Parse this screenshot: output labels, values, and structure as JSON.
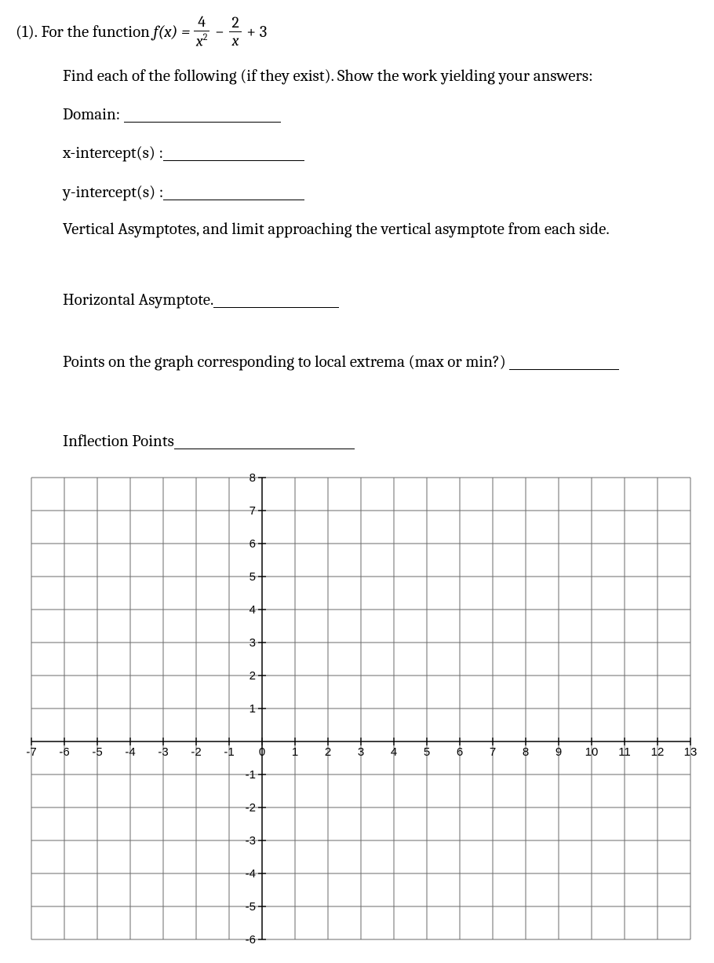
{
  "problem": {
    "number": "(1).",
    "intro_before_func": "For the function  ",
    "func_lhs": "f(x) =",
    "frac1_num": "4",
    "frac1_den": "x",
    "frac1_den_sup": "2",
    "minus": "−",
    "frac2_num": "2",
    "frac2_den": "x",
    "plus_const": "+ 3",
    "instruction": "Find each of the following (if they exist). Show the work yielding your answers:",
    "domain_label": "Domain:",
    "xint_label": "x-intercept(s) :",
    "yint_label": "y-intercept(s) :",
    "vasym_label": "Vertical Asymptotes, and limit approaching the vertical asymptote from each side.",
    "hasym_label": "Horizontal Asymptote.",
    "extrema_label": "Points on the graph corresponding to local extrema (max or min?)",
    "inflection_label": "Inflection Points"
  },
  "graph": {
    "xmin": -7,
    "xmax": 13,
    "ymin": -6,
    "ymax": 8,
    "cell": 42,
    "xlabels": [
      "-7",
      "-6",
      "-5",
      "-4",
      "-3",
      "-2",
      "-1",
      "0",
      "1",
      "2",
      "3",
      "4",
      "5",
      "6",
      "7",
      "8",
      "9",
      "10",
      "11",
      "12",
      "13"
    ],
    "ylabels_pos": [
      "1",
      "2",
      "3",
      "4",
      "5",
      "6",
      "7",
      "8"
    ],
    "ylabels_neg": [
      "-1",
      "-2",
      "-3",
      "-4",
      "-5",
      "-6"
    ],
    "grid_color": "#6b6b6b",
    "axis_color": "#000000",
    "label_fontsize": 15
  }
}
